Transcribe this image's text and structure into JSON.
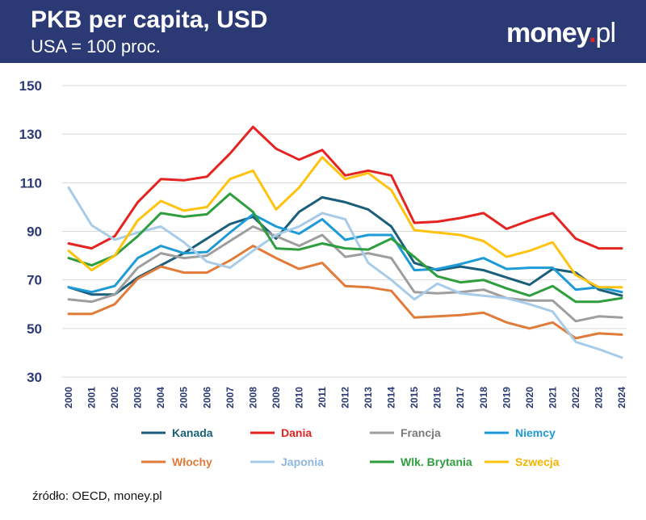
{
  "header": {
    "title": "PKB per capita, USD",
    "subtitle": "USA = 100 proc.",
    "logo_main": "money",
    "logo_dot": ".",
    "logo_suffix": "pl"
  },
  "source": "źródło: OECD, money.pl",
  "colors": {
    "header_bg": "#2b3a75",
    "axis_text": "#2b3a75",
    "grid": "#d9d9d9"
  },
  "chart_data": {
    "type": "line",
    "title": "PKB per capita, USD",
    "subtitle": "USA = 100 proc.",
    "xlabel": "",
    "ylabel": "",
    "ylim": [
      30,
      150
    ],
    "yticks": [
      30,
      50,
      70,
      90,
      110,
      130,
      150
    ],
    "grid": true,
    "legend_position": "bottom",
    "x": [
      "2000",
      "2001",
      "2002",
      "2003",
      "2004",
      "2005",
      "2006",
      "2007",
      "2008",
      "2009",
      "2010",
      "2011",
      "2012",
      "2013",
      "2014",
      "2015",
      "2016",
      "2017",
      "2018",
      "2019",
      "2020",
      "2021",
      "2022",
      "2023",
      "2024"
    ],
    "series": [
      {
        "name": "Kanada",
        "color": "#1b5e7a",
        "label_color": "#1b5e7a",
        "values": [
          67,
          64,
          64,
          71,
          76,
          81,
          87,
          93,
          96,
          87,
          98,
          104,
          102,
          99,
          92,
          77,
          74,
          75.5,
          74,
          71,
          68,
          74.5,
          73,
          66,
          63.5
        ]
      },
      {
        "name": "Dania",
        "color": "#e52320",
        "label_color": "#e52320",
        "values": [
          85,
          83,
          88,
          102,
          111.5,
          111,
          112.5,
          122,
          133,
          124,
          119.5,
          123.5,
          113,
          115,
          113,
          93.5,
          94,
          95.5,
          97.5,
          91,
          94.5,
          97.5,
          87,
          83,
          83
        ]
      },
      {
        "name": "Francja",
        "color": "#9e9e9e",
        "label_color": "#7a7a7a",
        "values": [
          62,
          61,
          64,
          75,
          81,
          79,
          80,
          86,
          92,
          88,
          84,
          88.5,
          79.5,
          81,
          79,
          65,
          64.5,
          65,
          66,
          62.5,
          61.5,
          61.5,
          53,
          55,
          54.5
        ]
      },
      {
        "name": "Niemcy",
        "color": "#1e9bd7",
        "label_color": "#1e9bd7",
        "values": [
          67,
          65,
          67.5,
          79,
          84,
          81,
          81.5,
          89.5,
          97,
          92,
          89,
          95,
          86.5,
          88.5,
          88.5,
          74,
          74.5,
          76.5,
          79,
          74.5,
          75,
          75,
          66,
          67,
          65
        ]
      },
      {
        "name": "Włochy",
        "color": "#e07b39",
        "label_color": "#e07b39",
        "values": [
          56,
          56,
          60,
          70.5,
          75.5,
          73,
          73,
          78,
          84,
          79,
          74.5,
          77,
          67.5,
          67,
          65.5,
          54.5,
          55,
          55.5,
          56.5,
          52.5,
          50,
          52.5,
          46,
          48,
          47.5
        ]
      },
      {
        "name": "Japonia",
        "color": "#a8cbe8",
        "label_color": "#8fb7dd",
        "values": [
          108,
          92.5,
          86.5,
          89.5,
          92,
          85.5,
          77.5,
          75,
          82,
          88.5,
          92,
          97.5,
          95,
          77,
          70,
          62,
          68.5,
          64.5,
          63.5,
          62.5,
          60,
          57,
          44.5,
          41.5,
          38
        ]
      },
      {
        "name": "Wlk. Brytania",
        "color": "#2e9e3e",
        "label_color": "#2e9e3e",
        "values": [
          79,
          76,
          80,
          88,
          97.5,
          96,
          97,
          105.5,
          98,
          83,
          82.5,
          85,
          83,
          82.5,
          87,
          79.5,
          71.5,
          69,
          70,
          66.5,
          63.5,
          67.5,
          61,
          61,
          62.5
        ]
      },
      {
        "name": "Szwecja",
        "color": "#ffc20e",
        "label_color": "#f2b400",
        "values": [
          82,
          74,
          80,
          94.5,
          102.5,
          98.5,
          100,
          111.5,
          115,
          99,
          108,
          120.5,
          111.5,
          114,
          107,
          90.5,
          89.5,
          88.5,
          86,
          79.5,
          82,
          85.5,
          72,
          67,
          67
        ]
      }
    ]
  }
}
